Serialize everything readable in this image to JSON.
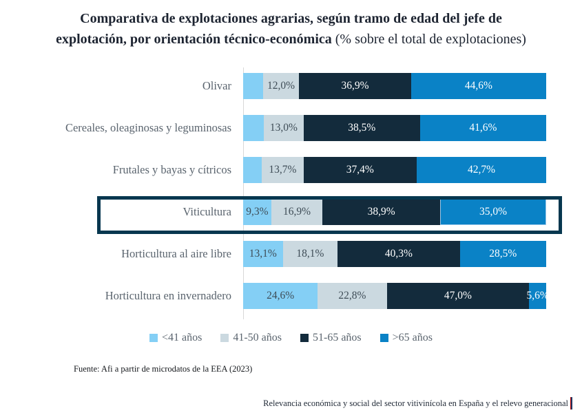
{
  "title": {
    "line1_bold": "Comparativa de explotaciones agrarias, según tramo de edad del jefe de",
    "line2_bold": "explotación, por orientación técnico-económica",
    "line2_normal": " (% sobre el total de explotaciones)"
  },
  "chart_data": {
    "type": "bar",
    "subtype": "horizontal-stacked-100",
    "title": "Comparativa de explotaciones agrarias, según tramo de edad del jefe de explotación, por orientación técnico-económica",
    "unit": "% sobre el total de explotaciones",
    "legend_position": "bottom",
    "axis_color": "#d8d8d8",
    "highlighted_category": "Viticultura",
    "highlight_box_color": "#07374f",
    "categories": [
      "Olivar",
      "Cereales, oleaginosas y leguminosas",
      "Frutales y bayas y cítricos",
      "Viticultura",
      "Horticultura al aire libre",
      "Horticultura en invernadero"
    ],
    "series": [
      {
        "name": "<41 años",
        "color": "#84cff5",
        "label_color": "#3e4c56",
        "values": [
          6.5,
          6.9,
          6.2,
          9.3,
          13.1,
          24.6
        ]
      },
      {
        "name": "41-50 años",
        "color": "#cbd9e0",
        "label_color": "#3e4c56",
        "values": [
          12.0,
          13.0,
          13.7,
          16.9,
          18.1,
          22.8
        ]
      },
      {
        "name": "51-65 años",
        "color": "#132b3c",
        "label_color": "#ffffff",
        "values": [
          36.9,
          38.5,
          37.4,
          38.9,
          40.3,
          47.0
        ]
      },
      {
        "name": ">65 años",
        "color": "#0a82c6",
        "label_color": "#ffffff",
        "values": [
          44.6,
          41.6,
          42.7,
          35.0,
          28.5,
          5.6
        ]
      }
    ],
    "rows": [
      {
        "label": "Olivar",
        "segments": [
          {
            "value": 6.5,
            "display": ""
          },
          {
            "value": 12.0,
            "display": "12,0%"
          },
          {
            "value": 36.9,
            "display": "36,9%"
          },
          {
            "value": 44.6,
            "display": "44,6%"
          }
        ]
      },
      {
        "label": "Cereales, oleaginosas y leguminosas",
        "segments": [
          {
            "value": 6.9,
            "display": ""
          },
          {
            "value": 13.0,
            "display": "13,0%"
          },
          {
            "value": 38.5,
            "display": "38,5%"
          },
          {
            "value": 41.6,
            "display": "41,6%"
          }
        ]
      },
      {
        "label": "Frutales y bayas y cítricos",
        "segments": [
          {
            "value": 6.2,
            "display": ""
          },
          {
            "value": 13.7,
            "display": "13,7%"
          },
          {
            "value": 37.4,
            "display": "37,4%"
          },
          {
            "value": 42.7,
            "display": "42,7%"
          }
        ]
      },
      {
        "label": "Viticultura",
        "highlighted": true,
        "segments": [
          {
            "value": 9.3,
            "display": "9,3%"
          },
          {
            "value": 16.9,
            "display": "16,9%"
          },
          {
            "value": 38.9,
            "display": "38,9%"
          },
          {
            "value": 35.0,
            "display": "35,0%",
            "outlined": true
          }
        ]
      },
      {
        "label": "Horticultura al aire libre",
        "segments": [
          {
            "value": 13.1,
            "display": "13,1%"
          },
          {
            "value": 18.1,
            "display": "18,1%"
          },
          {
            "value": 40.3,
            "display": "40,3%"
          },
          {
            "value": 28.5,
            "display": "28,5%"
          }
        ]
      },
      {
        "label": "Horticultura en invernadero",
        "segments": [
          {
            "value": 24.6,
            "display": "24,6%"
          },
          {
            "value": 22.8,
            "display": "22,8%"
          },
          {
            "value": 47.0,
            "display": "47,0%"
          },
          {
            "value": 5.6,
            "display": "5,6%"
          }
        ]
      }
    ]
  },
  "legend": {
    "items": [
      {
        "label": "<41 años",
        "color": "#84cff5"
      },
      {
        "label": "41-50 años",
        "color": "#cbd9e0"
      },
      {
        "label": "51-65 años",
        "color": "#132b3c"
      },
      {
        "label": ">65 años",
        "color": "#0a82c6"
      }
    ]
  },
  "footer": {
    "source": "Fuente: Afi a partir de microdatos de la EEA (2023)",
    "report_title": "Relevancia económica y social del sector vitivinícola en España y el relevo generacional"
  }
}
